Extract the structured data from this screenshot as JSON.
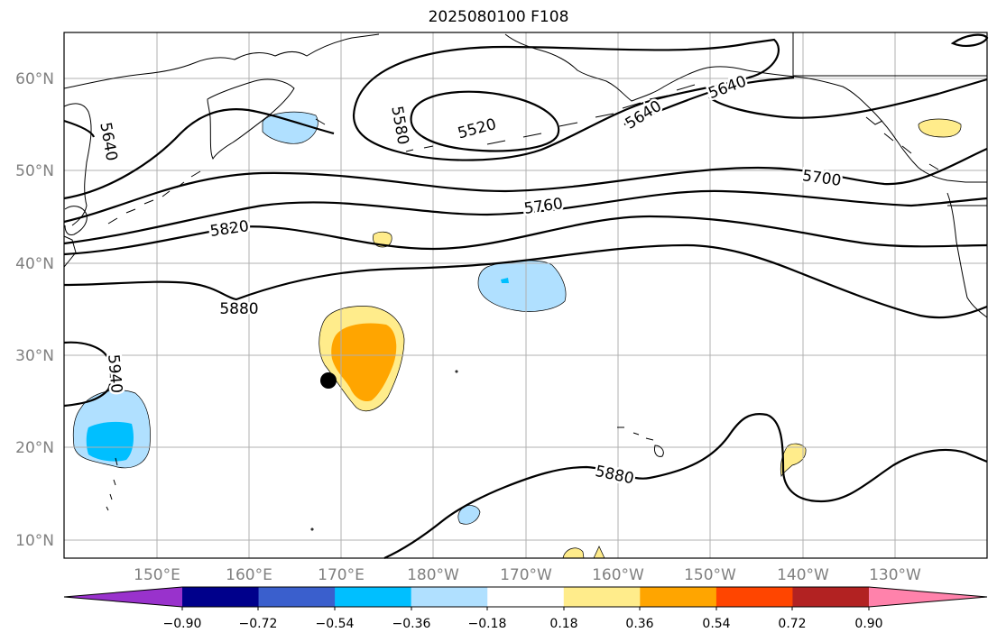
{
  "title": "2025080100 F108",
  "lat_ticks": [
    "60°N",
    "50°N",
    "40°N",
    "30°N",
    "20°N",
    "10°N"
  ],
  "lon_ticks": [
    "150°E",
    "160°E",
    "170°E",
    "180°W",
    "170°W",
    "160°W",
    "150°W",
    "140°W",
    "130°W"
  ],
  "contour_labels": [
    "5520",
    "5580",
    "5640",
    "5640",
    "5640",
    "5700",
    "5760",
    "5820",
    "5880",
    "5880",
    "5940"
  ],
  "colorbar": {
    "ticks": [
      "−0.90",
      "−0.72",
      "−0.54",
      "−0.36",
      "−0.18",
      "0.18",
      "0.36",
      "0.54",
      "0.72",
      "0.90"
    ],
    "colors": [
      "#9932cc",
      "#00008b",
      "#3a5fcd",
      "#00bfff",
      "#b0e0ff",
      "#ffffff",
      "#ffec8b",
      "#ffa500",
      "#ff4500",
      "#b22222",
      "#ff82ab"
    ]
  },
  "colors": {
    "contour": "#000000",
    "grid": "#b0b0b0",
    "coast": "#000000",
    "light_blue": "#b0e0ff",
    "mid_blue": "#00bfff",
    "light_yellow": "#ffec8b",
    "orange": "#ffa500",
    "marker": "#000000"
  }
}
